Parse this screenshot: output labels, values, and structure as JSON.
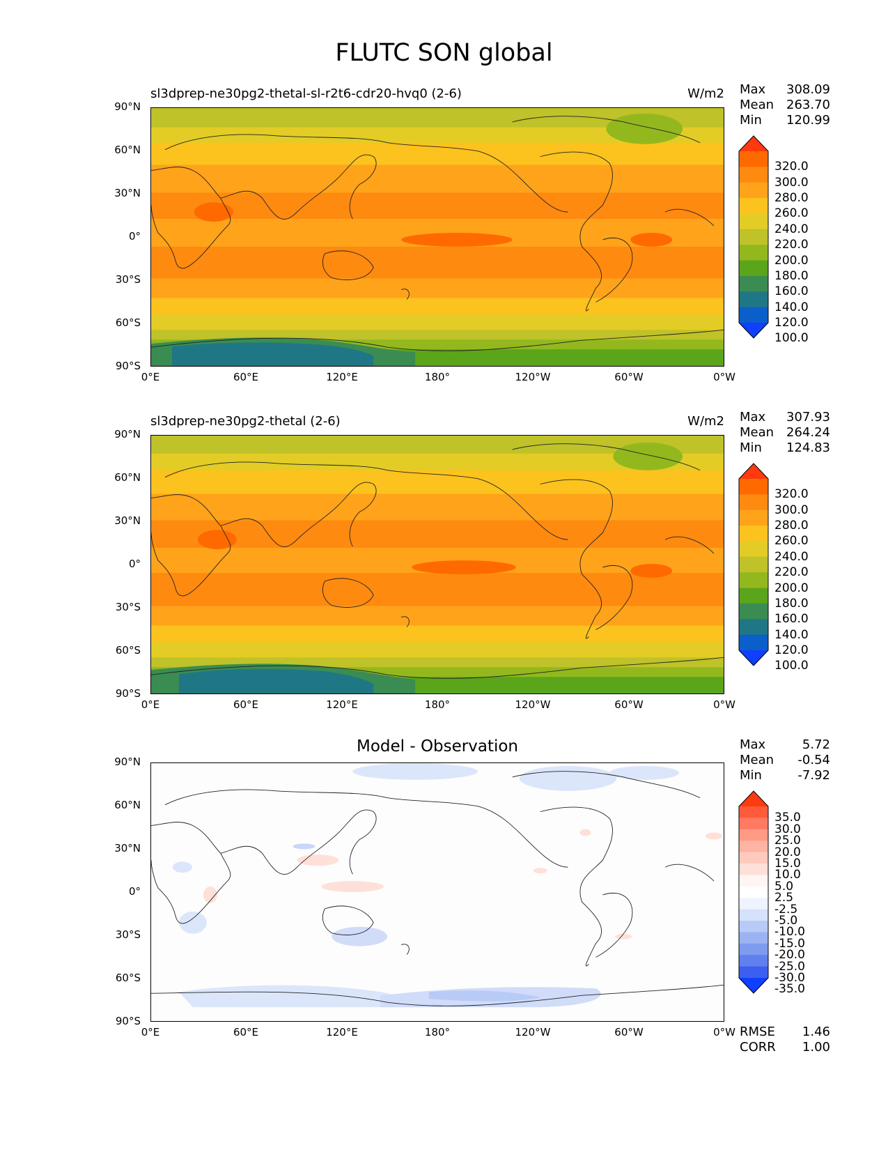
{
  "figure_title": "FLUTC SON global",
  "x_tick_labels": [
    "0°E",
    "60°E",
    "120°E",
    "180°",
    "120°W",
    "60°W",
    "0°W"
  ],
  "y_tick_labels": [
    "90°N",
    "60°N",
    "30°N",
    "0°",
    "30°S",
    "60°S",
    "90°S"
  ],
  "panels": [
    {
      "title": "sl3dprep-ne30pg2-thetal-sl-r2t6-cdr20-hvq0 (2-6)",
      "units": "W/m2",
      "stats": {
        "max_label": "Max",
        "max": "308.09",
        "mean_label": "Mean",
        "mean": "263.70",
        "min_label": "Min",
        "min": "120.99"
      },
      "colorbar": {
        "labels": [
          "320.0",
          "300.0",
          "280.0",
          "260.0",
          "240.0",
          "220.0",
          "200.0",
          "180.0",
          "160.0",
          "140.0",
          "120.0",
          "100.0"
        ],
        "colors": [
          "#ff3a0f",
          "#ff6a00",
          "#ff8a10",
          "#ffa31a",
          "#fcc21e",
          "#e3cc25",
          "#bfc228",
          "#93b81e",
          "#5aa51a",
          "#3a8c52",
          "#1f7785",
          "#0b5fcb",
          "#0f3fff"
        ]
      }
    },
    {
      "title": "sl3dprep-ne30pg2-thetal (2-6)",
      "units": "W/m2",
      "stats": {
        "max_label": "Max",
        "max": "307.93",
        "mean_label": "Mean",
        "mean": "264.24",
        "min_label": "Min",
        "min": "124.83"
      },
      "colorbar": {
        "labels": [
          "320.0",
          "300.0",
          "280.0",
          "260.0",
          "240.0",
          "220.0",
          "200.0",
          "180.0",
          "160.0",
          "140.0",
          "120.0",
          "100.0"
        ],
        "colors": [
          "#ff3a0f",
          "#ff6a00",
          "#ff8a10",
          "#ffa31a",
          "#fcc21e",
          "#e3cc25",
          "#bfc228",
          "#93b81e",
          "#5aa51a",
          "#3a8c52",
          "#1f7785",
          "#0b5fcb",
          "#0f3fff"
        ]
      }
    },
    {
      "title": "Model - Observation",
      "units": "",
      "stats": {
        "max_label": "Max",
        "max": "5.72",
        "mean_label": "Mean",
        "mean": "-0.54",
        "min_label": "Min",
        "min": "-7.92"
      },
      "colorbar": {
        "labels": [
          "35.0",
          "30.0",
          "25.0",
          "20.0",
          "15.0",
          "10.0",
          "5.0",
          "2.5",
          "-2.5",
          "-5.0",
          "-10.0",
          "-15.0",
          "-20.0",
          "-25.0",
          "-30.0",
          "-35.0"
        ],
        "colors": [
          "#ff3a0f",
          "#ff5a3c",
          "#ff7a60",
          "#ff9a85",
          "#ffb3a2",
          "#ffcabd",
          "#ffe0d8",
          "#fff5f2",
          "#ffffff",
          "#eef3ff",
          "#d6e1fb",
          "#b8cbf6",
          "#9bb3f2",
          "#7e9bef",
          "#5f80ee",
          "#3c5ff0",
          "#0f3fff"
        ]
      },
      "rmse_label": "RMSE",
      "rmse": "1.46",
      "corr_label": "CORR",
      "corr": "1.00"
    }
  ]
}
